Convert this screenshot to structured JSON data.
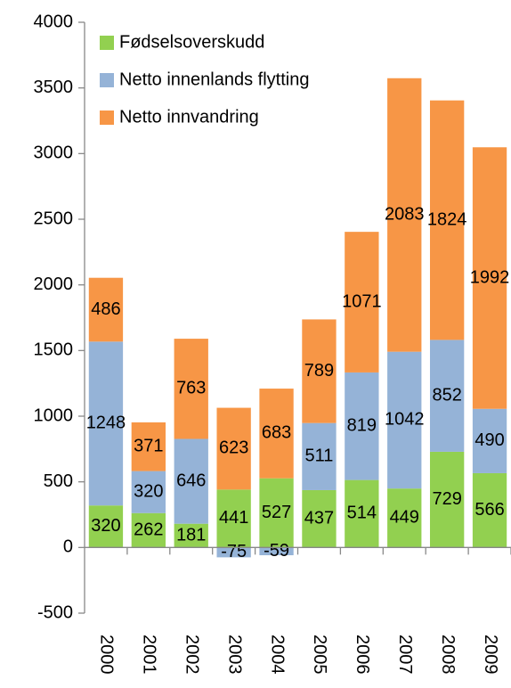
{
  "chart_data": {
    "type": "bar",
    "stacked": true,
    "categories": [
      "2000",
      "2001",
      "2002",
      "2003",
      "2004",
      "2005",
      "2006",
      "2007",
      "2008",
      "2009"
    ],
    "series": [
      {
        "name": "Fødselsoverskudd",
        "color": "#92d050",
        "values": [
          320,
          262,
          181,
          441,
          527,
          437,
          514,
          449,
          729,
          566
        ]
      },
      {
        "name": "Netto innenlands flytting",
        "color": "#95b3d7",
        "values": [
          1248,
          320,
          646,
          -75,
          -59,
          511,
          819,
          1042,
          852,
          490
        ]
      },
      {
        "name": "Netto innvandring",
        "color": "#f79646",
        "values": [
          486,
          371,
          763,
          623,
          683,
          789,
          1071,
          2083,
          1824,
          1992
        ]
      }
    ],
    "ylim": [
      -500,
      4000
    ],
    "yticks": [
      -500,
      0,
      500,
      1000,
      1500,
      2000,
      2500,
      3000,
      3500,
      4000
    ],
    "legend": "upper left"
  }
}
